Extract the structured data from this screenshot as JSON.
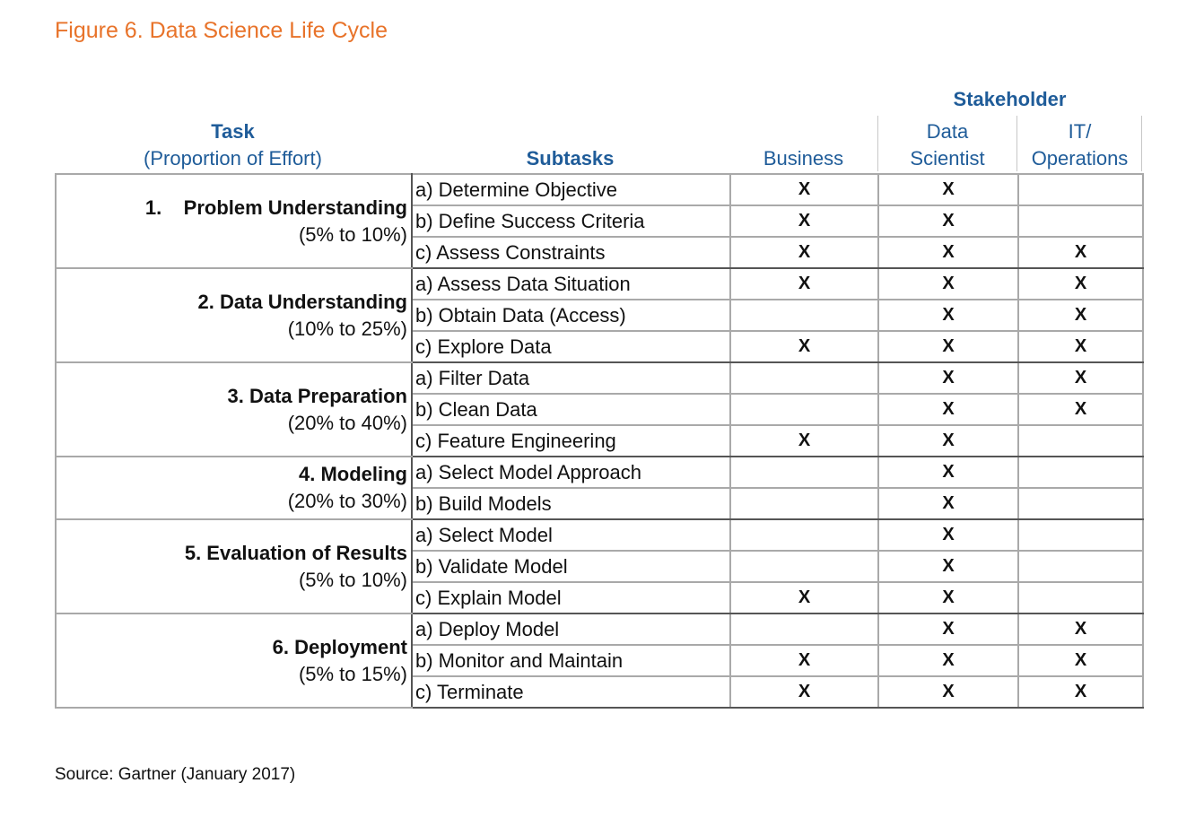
{
  "figure_title": "Figure 6. Data Science Life Cycle",
  "header": {
    "task": "Task",
    "task_sub": "(Proportion of Effort)",
    "subtasks": "Subtasks",
    "stakeholder": "Stakeholder",
    "business": "Business",
    "data_scientist_1": "Data",
    "data_scientist_2": "Scientist",
    "it_ops_1": "IT/",
    "it_ops_2": "Operations"
  },
  "tasks": [
    {
      "name": "1.    Problem Understanding",
      "effort": "(5% to 10%)",
      "subtasks": [
        {
          "label": "a) Determine Objective",
          "business": "X",
          "data_scientist": "X",
          "it_ops": ""
        },
        {
          "label": "b) Define Success Criteria",
          "business": "X",
          "data_scientist": "X",
          "it_ops": ""
        },
        {
          "label": "c) Assess Constraints",
          "business": "X",
          "data_scientist": "X",
          "it_ops": "X"
        }
      ]
    },
    {
      "name": "2. Data Understanding",
      "effort": "(10% to 25%)",
      "subtasks": [
        {
          "label": "a) Assess Data Situation",
          "business": "X",
          "data_scientist": "X",
          "it_ops": "X"
        },
        {
          "label": "b) Obtain Data (Access)",
          "business": "",
          "data_scientist": "X",
          "it_ops": "X"
        },
        {
          "label": "c) Explore Data",
          "business": "X",
          "data_scientist": "X",
          "it_ops": "X"
        }
      ]
    },
    {
      "name": "3. Data Preparation",
      "effort": "(20% to 40%)",
      "subtasks": [
        {
          "label": "a) Filter Data",
          "business": "",
          "data_scientist": "X",
          "it_ops": "X"
        },
        {
          "label": "b) Clean Data",
          "business": "",
          "data_scientist": "X",
          "it_ops": "X"
        },
        {
          "label": "c) Feature Engineering",
          "business": "X",
          "data_scientist": "X",
          "it_ops": ""
        }
      ]
    },
    {
      "name": "4. Modeling",
      "effort": "(20% to 30%)",
      "subtasks": [
        {
          "label": "a) Select Model Approach",
          "business": "",
          "data_scientist": "X",
          "it_ops": ""
        },
        {
          "label": "b) Build Models",
          "business": "",
          "data_scientist": "X",
          "it_ops": ""
        }
      ]
    },
    {
      "name": "5. Evaluation of Results",
      "effort": "(5% to 10%)",
      "subtasks": [
        {
          "label": "a) Select Model",
          "business": "",
          "data_scientist": "X",
          "it_ops": ""
        },
        {
          "label": "b) Validate Model",
          "business": "",
          "data_scientist": "X",
          "it_ops": ""
        },
        {
          "label": "c) Explain Model",
          "business": "X",
          "data_scientist": "X",
          "it_ops": ""
        }
      ]
    },
    {
      "name": "6. Deployment",
      "effort": "(5% to 15%)",
      "subtasks": [
        {
          "label": "a) Deploy Model",
          "business": "",
          "data_scientist": "X",
          "it_ops": "X"
        },
        {
          "label": "b) Monitor and Maintain",
          "business": "X",
          "data_scientist": "X",
          "it_ops": "X"
        },
        {
          "label": "c) Terminate",
          "business": "X",
          "data_scientist": "X",
          "it_ops": "X"
        }
      ]
    }
  ],
  "source": "Source: Gartner (January 2017)"
}
